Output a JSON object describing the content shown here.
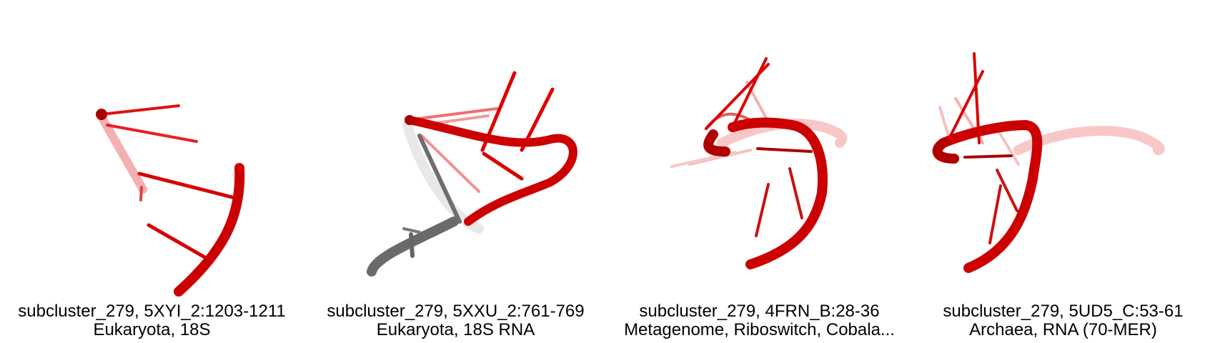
{
  "colors": {
    "strand": "#dd0000",
    "strand_light": "#f28a8a",
    "grey": "#6e6e6e",
    "grey_light": "#c8c8c8"
  },
  "panels": [
    {
      "line1": "subcluster_279, 5XYI_2:1203-1211",
      "line2": "Eukaryota, 18S"
    },
    {
      "line1": "subcluster_279, 5XXU_2:761-769",
      "line2": "Eukaryota, 18S RNA"
    },
    {
      "line1": "subcluster_279, 4FRN_B:28-36",
      "line2": "Metagenome, Riboswitch, Cobala..."
    },
    {
      "line1": "subcluster_279, 5UD5_C:53-61",
      "line2": "Archaea, RNA (70-MER)"
    }
  ]
}
